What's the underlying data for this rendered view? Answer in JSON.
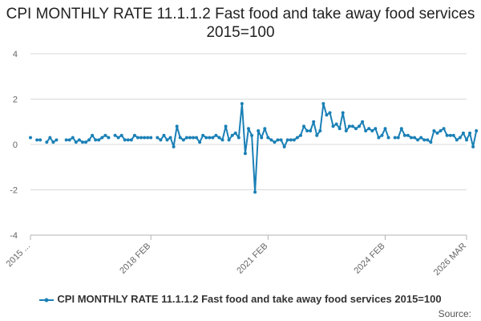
{
  "colors": {
    "series": "#1a80b6",
    "grid": "#d9d9d9",
    "axis": "#b3b3b3"
  },
  "source_label": "Source:",
  "chart_data": {
    "type": "line",
    "title": "CPI MONTHLY RATE 11.1.1.2 Fast food and take away food services 2015=100",
    "xlabel": "",
    "ylabel": "",
    "ylim": [
      -4,
      4
    ],
    "yticks": [
      -4,
      -2,
      0,
      2,
      4
    ],
    "xlim": [
      "2015 JAN",
      "2026 MAR"
    ],
    "xtick_labels": [
      "2015 ...",
      "2018 FEB",
      "2021 FEB",
      "2024 FEB",
      "2026 MAR"
    ],
    "xtick_positions": [
      "2015 JAN",
      "2018 FEB",
      "2021 FEB",
      "2024 FEB",
      "2026 MAR"
    ],
    "grid": "horizontal",
    "legend_position": "bottom",
    "series": [
      {
        "name": "CPI MONTHLY RATE 11.1.1.2 Fast food and take away food services 2015=100",
        "start": "2015 JAN",
        "frequency": "monthly",
        "values": [
          0.3,
          null,
          0.2,
          0.2,
          null,
          0.1,
          0.3,
          0.1,
          0.2,
          null,
          null,
          0.2,
          0.2,
          0.3,
          0.1,
          0.2,
          0.1,
          0.1,
          0.2,
          0.4,
          0.2,
          0.2,
          0.3,
          0.4,
          0.3,
          null,
          0.4,
          0.3,
          0.4,
          0.2,
          0.2,
          0.2,
          0.4,
          0.3,
          0.3,
          0.3,
          0.3,
          0.3,
          null,
          0.3,
          0.2,
          0.4,
          0.2,
          0.3,
          -0.1,
          0.8,
          0.3,
          0.2,
          0.3,
          0.3,
          0.3,
          0.3,
          0.1,
          0.4,
          0.3,
          0.3,
          0.3,
          0.4,
          0.3,
          0.2,
          0.8,
          0.2,
          0.4,
          0.5,
          0.3,
          1.8,
          -0.4,
          0.7,
          0.4,
          -2.1,
          0.6,
          0.3,
          0.7,
          0.3,
          0.2,
          0.1,
          0.2,
          0.2,
          -0.1,
          0.2,
          0.2,
          0.2,
          0.3,
          0.4,
          0.8,
          0.6,
          0.6,
          1.0,
          0.4,
          0.6,
          1.8,
          1.3,
          1.4,
          0.8,
          0.9,
          0.7,
          1.4,
          0.6,
          0.8,
          0.8,
          0.7,
          0.8,
          1.0,
          0.6,
          0.7,
          0.6,
          0.7,
          0.3,
          0.4,
          0.7,
          0.3,
          null,
          0.3,
          0.3,
          0.7,
          0.4,
          0.4,
          0.3,
          0.3,
          0.2,
          0.3,
          0.2,
          0.2,
          0.1,
          0.6,
          0.5,
          0.6,
          0.7,
          0.4,
          0.4,
          0.4,
          0.2,
          0.3,
          0.5,
          0.2,
          0.5,
          -0.1,
          0.6
        ]
      }
    ]
  }
}
